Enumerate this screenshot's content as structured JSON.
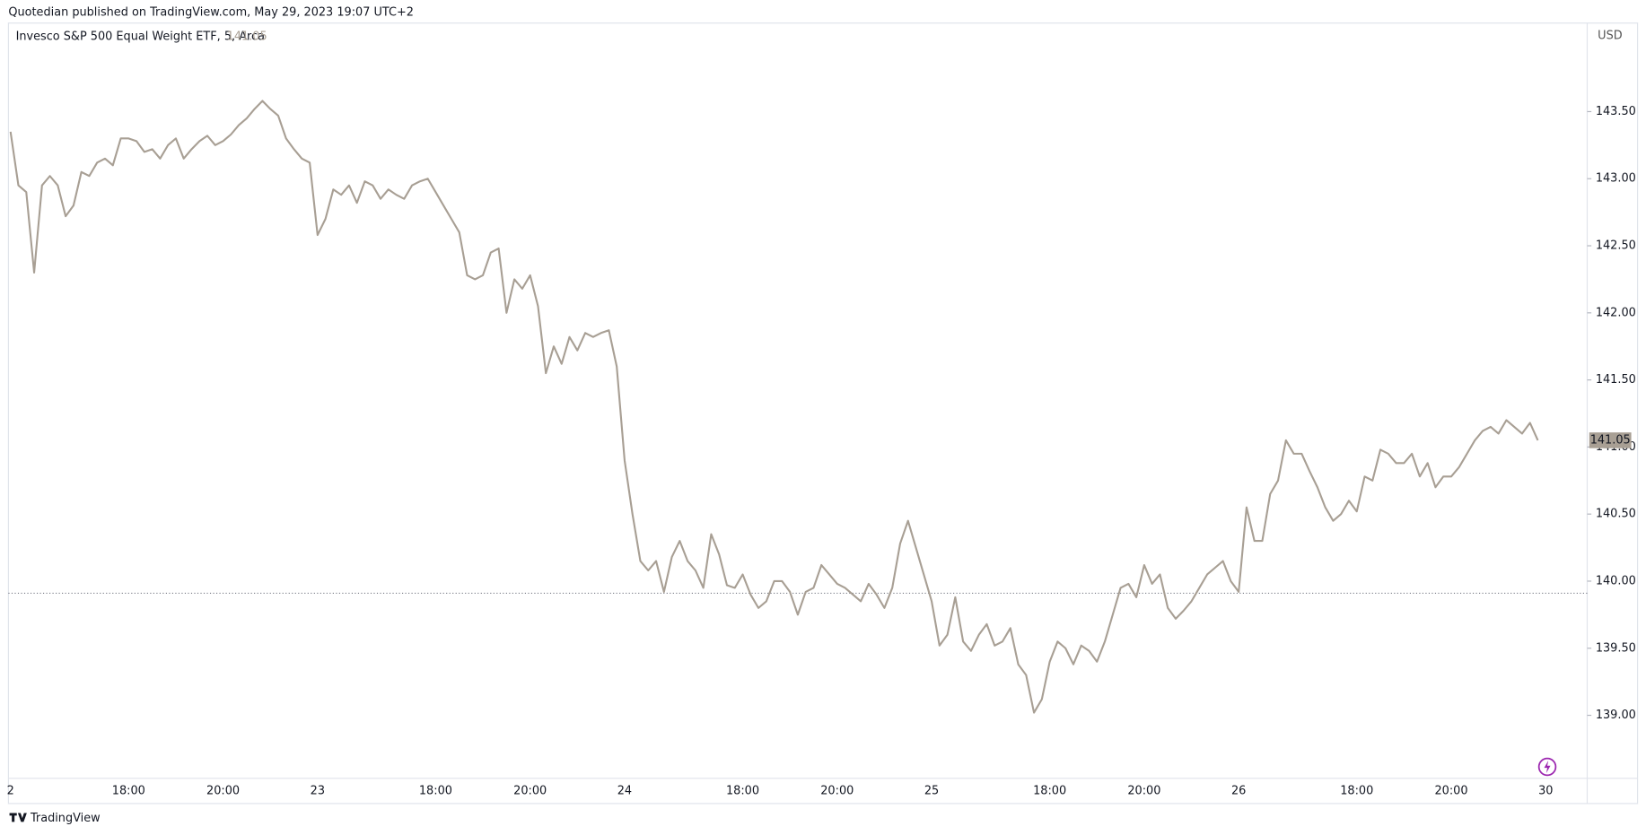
{
  "header": {
    "published": "Quotedian published on TradingView.com, May 29, 2023 19:07 UTC+2",
    "brand": "TradingView"
  },
  "chart_data": {
    "type": "line",
    "title": "Invesco S&P 500 Equal Weight ETF, 5, Arca",
    "last_price": 141.05,
    "currency": "USD",
    "color": "#a89f94",
    "reference_line": 139.91,
    "ylim": [
      138.53,
      144.16
    ],
    "yticks": [
      {
        "value": 139,
        "label": "139.00"
      },
      {
        "value": 139.5,
        "label": "139.50"
      },
      {
        "value": 140,
        "label": "140.00"
      },
      {
        "value": 140.5,
        "label": "140.50"
      },
      {
        "value": 141,
        "label": "141.00"
      },
      {
        "value": 141.5,
        "label": "141.50"
      },
      {
        "value": 142,
        "label": "142.00"
      },
      {
        "value": 142.5,
        "label": "142.50"
      },
      {
        "value": 143,
        "label": "143.00"
      },
      {
        "value": 143.5,
        "label": "143.50"
      }
    ],
    "categories": [
      "2",
      null,
      null,
      null,
      null,
      null,
      null,
      null,
      null,
      null,
      null,
      null,
      null,
      null,
      null,
      "18:00",
      null,
      null,
      null,
      null,
      null,
      null,
      null,
      null,
      null,
      null,
      null,
      "20:00",
      null,
      null,
      null,
      null,
      null,
      null,
      null,
      null,
      null,
      null,
      null,
      "23",
      null,
      null,
      null,
      null,
      null,
      null,
      null,
      null,
      null,
      null,
      null,
      null,
      null,
      null,
      "18:00",
      null,
      null,
      null,
      null,
      null,
      null,
      null,
      null,
      null,
      null,
      null,
      "20:00",
      null,
      null,
      null,
      null,
      null,
      null,
      null,
      null,
      null,
      null,
      null,
      "24",
      null,
      null,
      null,
      null,
      null,
      null,
      null,
      null,
      null,
      null,
      null,
      null,
      null,
      null,
      "18:00",
      null,
      null,
      null,
      null,
      null,
      null,
      null,
      null,
      null,
      null,
      null,
      "20:00",
      null,
      null,
      null,
      null,
      null,
      null,
      null,
      null,
      null,
      null,
      null,
      "25",
      null,
      null,
      null,
      null,
      null,
      null,
      null,
      null,
      null,
      null,
      null,
      null,
      null,
      null,
      "18:00",
      null,
      null,
      null,
      null,
      null,
      null,
      null,
      null,
      null,
      null,
      null,
      "20:00",
      null,
      null,
      null,
      null,
      null,
      null,
      null,
      null,
      null,
      null,
      null,
      "26",
      null,
      null,
      null,
      null,
      null,
      null,
      null,
      null,
      null,
      null,
      null,
      null,
      null,
      null,
      "18:00",
      null,
      null,
      null,
      null,
      null,
      null,
      null,
      null,
      null,
      null,
      null,
      "20:00",
      null,
      null,
      null,
      null,
      null,
      null,
      null,
      null,
      null,
      null,
      null,
      "30"
    ],
    "values": [
      143.35,
      142.95,
      142.9,
      142.3,
      142.95,
      143.02,
      142.95,
      142.72,
      142.8,
      143.05,
      143.02,
      143.12,
      143.15,
      143.1,
      143.3,
      143.3,
      143.28,
      143.2,
      143.22,
      143.15,
      143.25,
      143.3,
      143.15,
      143.22,
      143.28,
      143.32,
      143.25,
      143.28,
      143.33,
      143.4,
      143.45,
      143.52,
      143.58,
      143.52,
      143.47,
      143.3,
      143.22,
      143.15,
      143.12,
      142.58,
      142.7,
      142.92,
      142.88,
      142.95,
      142.82,
      142.98,
      142.95,
      142.85,
      142.92,
      142.88,
      142.85,
      142.95,
      142.98,
      143.0,
      142.9,
      142.8,
      142.7,
      142.6,
      142.28,
      142.25,
      142.28,
      142.45,
      142.48,
      142.0,
      142.25,
      142.18,
      142.28,
      142.05,
      141.55,
      141.75,
      141.62,
      141.82,
      141.72,
      141.85,
      141.82,
      141.85,
      141.87,
      141.6,
      140.9,
      140.5,
      140.15,
      140.08,
      140.15,
      139.92,
      140.18,
      140.3,
      140.15,
      140.08,
      139.95,
      140.35,
      140.2,
      139.97,
      139.95,
      140.05,
      139.9,
      139.8,
      139.85,
      140.0,
      140.0,
      139.92,
      139.75,
      139.92,
      139.95,
      140.12,
      140.05,
      139.98,
      139.95,
      139.9,
      139.85,
      139.98,
      139.9,
      139.8,
      139.95,
      140.28,
      140.45,
      140.25,
      140.05,
      139.85,
      139.52,
      139.6,
      139.88,
      139.55,
      139.48,
      139.6,
      139.68,
      139.52,
      139.55,
      139.65,
      139.38,
      139.3,
      139.02,
      139.12,
      139.4,
      139.55,
      139.5,
      139.38,
      139.52,
      139.48,
      139.4,
      139.55,
      139.75,
      139.95,
      139.98,
      139.88,
      140.12,
      139.98,
      140.05,
      139.8,
      139.72,
      139.78,
      139.85,
      139.95,
      140.05,
      140.1,
      140.15,
      140.0,
      139.92,
      140.55,
      140.3,
      140.3,
      140.65,
      140.75,
      141.05,
      140.95,
      140.95,
      140.82,
      140.7,
      140.55,
      140.45,
      140.5,
      140.6,
      140.52,
      140.78,
      140.75,
      140.98,
      140.95,
      140.88,
      140.88,
      140.95,
      140.78,
      140.88,
      140.7,
      140.78,
      140.78,
      140.85,
      140.95,
      141.05,
      141.12,
      141.15,
      141.1,
      141.2,
      141.15,
      141.1,
      141.18,
      141.05,
      null
    ]
  }
}
